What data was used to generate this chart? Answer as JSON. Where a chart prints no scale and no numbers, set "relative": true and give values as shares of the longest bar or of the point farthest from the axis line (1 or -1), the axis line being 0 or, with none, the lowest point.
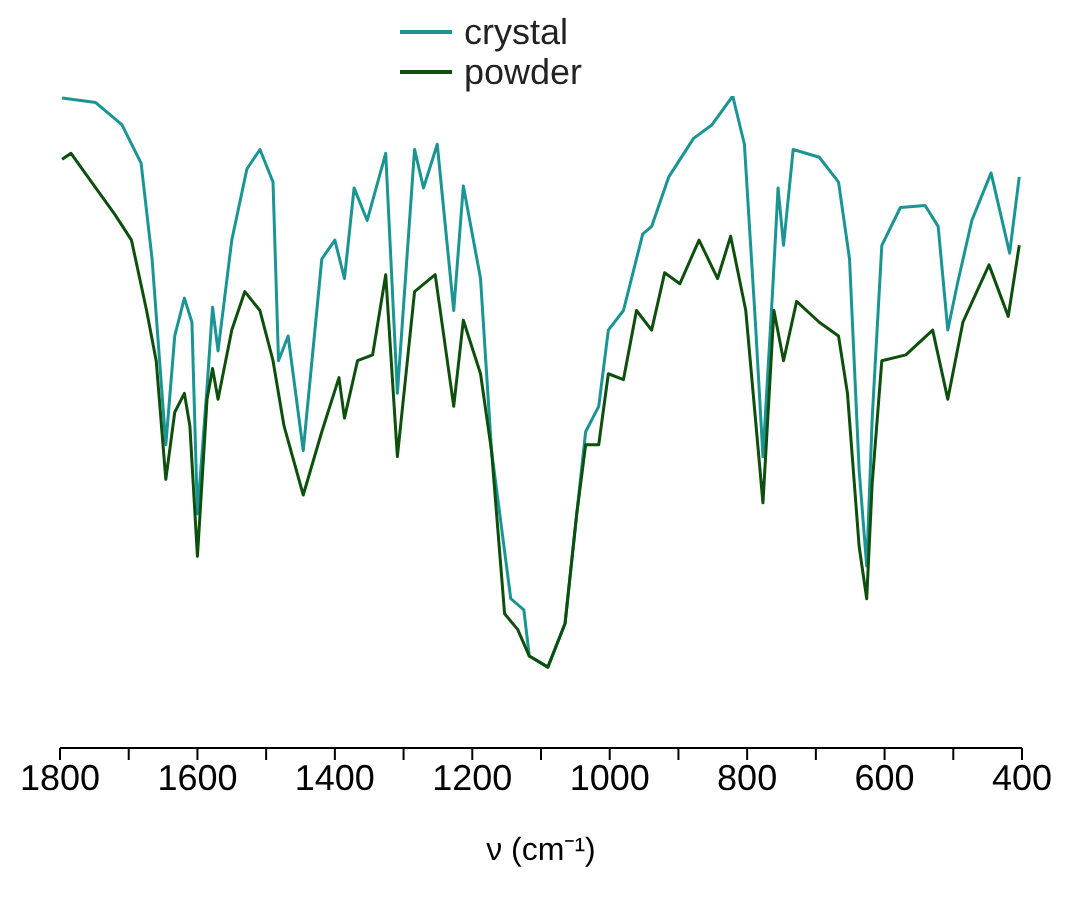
{
  "chart_data": {
    "type": "line",
    "relative": true,
    "xlabel": "ν (cm⁻¹)",
    "xlim": [
      1800,
      400
    ],
    "xticks": [
      1800,
      {
        "value": 1700,
        "label": null
      },
      1600,
      {
        "value": 1500,
        "label": null
      },
      1400,
      {
        "value": 1300,
        "label": null
      },
      1200,
      {
        "value": 1100,
        "label": null
      },
      1000,
      {
        "value": 900,
        "label": null
      },
      800,
      {
        "value": 700,
        "label": null
      },
      600,
      {
        "value": 500,
        "label": null
      },
      400
    ],
    "legend": "top",
    "grid": false,
    "marker": "none",
    "line_style": "solid",
    "series": [
      {
        "name": "crystal",
        "color": "#1b9494",
        "x": [
          1797,
          1748,
          1710,
          1682,
          1666,
          1646,
          1633,
          1619,
          1608,
          1600,
          1586,
          1578,
          1570,
          1550,
          1528,
          1509,
          1490,
          1482,
          1468,
          1446,
          1419,
          1400,
          1386,
          1372,
          1353,
          1326,
          1309,
          1284,
          1271,
          1251,
          1227,
          1213,
          1188,
          1172,
          1144,
          1125,
          1117,
          1090,
          1065,
          1048,
          1035,
          1016,
          1002,
          980,
          952,
          939,
          914,
          878,
          851,
          821,
          804,
          788,
          777,
          763,
          755,
          747,
          733,
          695,
          667,
          651,
          637,
          626,
          618,
          604,
          577,
          541,
          522,
          508,
          494,
          473,
          445,
          418,
          404
        ],
        "values": [
          0.997,
          0.99,
          0.956,
          0.897,
          0.75,
          0.465,
          0.632,
          0.69,
          0.653,
          0.359,
          0.553,
          0.676,
          0.609,
          0.779,
          0.888,
          0.918,
          0.868,
          0.594,
          0.632,
          0.456,
          0.75,
          0.779,
          0.72,
          0.859,
          0.809,
          0.912,
          0.544,
          0.918,
          0.859,
          0.926,
          0.671,
          0.862,
          0.72,
          0.456,
          0.229,
          0.212,
          0.141,
          0.124,
          0.191,
          0.359,
          0.485,
          0.524,
          0.641,
          0.671,
          0.788,
          0.8,
          0.876,
          0.935,
          0.956,
          1.0,
          0.926,
          0.653,
          0.447,
          0.7,
          0.859,
          0.771,
          0.918,
          0.906,
          0.868,
          0.75,
          0.426,
          0.279,
          0.506,
          0.771,
          0.829,
          0.832,
          0.8,
          0.641,
          0.712,
          0.809,
          0.882,
          0.759,
          0.876
        ]
      },
      {
        "name": "powder",
        "color": "#0d4f0d",
        "x": [
          1797,
          1784,
          1748,
          1720,
          1696,
          1674,
          1660,
          1646,
          1633,
          1619,
          1611,
          1600,
          1586,
          1578,
          1570,
          1550,
          1531,
          1509,
          1490,
          1474,
          1446,
          1419,
          1394,
          1386,
          1367,
          1345,
          1326,
          1309,
          1284,
          1254,
          1227,
          1213,
          1188,
          1172,
          1153,
          1134,
          1117,
          1090,
          1065,
          1048,
          1035,
          1016,
          1002,
          980,
          961,
          939,
          920,
          898,
          870,
          843,
          824,
          802,
          777,
          761,
          747,
          728,
          695,
          667,
          654,
          637,
          626,
          618,
          604,
          569,
          530,
          508,
          486,
          448,
          420,
          404
        ],
        "values": [
          0.903,
          0.912,
          0.859,
          0.818,
          0.779,
          0.671,
          0.594,
          0.412,
          0.515,
          0.544,
          0.494,
          0.294,
          0.535,
          0.582,
          0.535,
          0.641,
          0.7,
          0.671,
          0.594,
          0.494,
          0.388,
          0.485,
          0.568,
          0.506,
          0.594,
          0.603,
          0.726,
          0.447,
          0.7,
          0.726,
          0.524,
          0.656,
          0.574,
          0.456,
          0.206,
          0.182,
          0.141,
          0.124,
          0.191,
          0.359,
          0.465,
          0.465,
          0.574,
          0.565,
          0.671,
          0.641,
          0.729,
          0.712,
          0.779,
          0.72,
          0.785,
          0.671,
          0.376,
          0.671,
          0.594,
          0.685,
          0.653,
          0.632,
          0.544,
          0.309,
          0.229,
          0.406,
          0.594,
          0.603,
          0.641,
          0.535,
          0.653,
          0.741,
          0.662,
          0.771
        ]
      }
    ]
  }
}
